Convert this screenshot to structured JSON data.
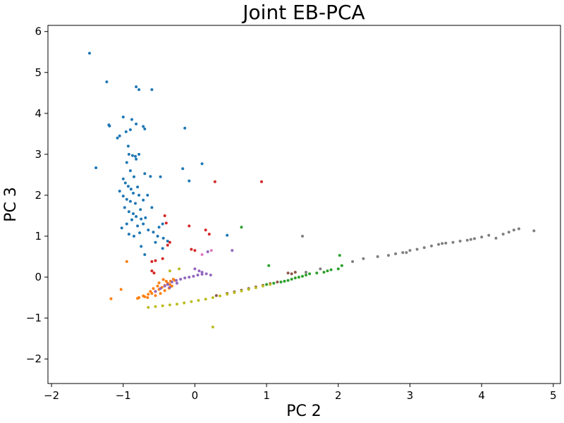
{
  "chart_data": {
    "type": "scatter",
    "title": "Joint EB-PCA",
    "xlabel": "PC 2",
    "ylabel": "PC 3",
    "xlim": [
      -2.05,
      5.1
    ],
    "ylim": [
      -2.6,
      6.15
    ],
    "xticks": [
      -2,
      -1,
      0,
      1,
      2,
      3,
      4,
      5
    ],
    "yticks": [
      -2,
      -1,
      0,
      1,
      2,
      3,
      4,
      5,
      6
    ],
    "xtick_labels": [
      "−2",
      "−1",
      "0",
      "1",
      "2",
      "3",
      "4",
      "5"
    ],
    "ytick_labels": [
      "−2",
      "−1",
      "0",
      "1",
      "2",
      "3",
      "4",
      "5",
      "6"
    ],
    "grid": false,
    "legend": false,
    "series": [
      {
        "color": "#1f77b4",
        "points": [
          [
            -1.47,
            5.47
          ],
          [
            -1.23,
            4.77
          ],
          [
            -0.82,
            4.65
          ],
          [
            -0.78,
            4.58
          ],
          [
            -0.6,
            4.58
          ],
          [
            -1.0,
            3.91
          ],
          [
            -0.88,
            3.85
          ],
          [
            -1.2,
            3.72
          ],
          [
            -1.19,
            3.69
          ],
          [
            -0.82,
            3.74
          ],
          [
            -0.72,
            3.68
          ],
          [
            -0.7,
            3.62
          ],
          [
            -0.14,
            3.64
          ],
          [
            -1.05,
            3.45
          ],
          [
            -0.96,
            3.55
          ],
          [
            -0.9,
            3.6
          ],
          [
            -1.08,
            3.4
          ],
          [
            -0.93,
            3.2
          ],
          [
            -0.92,
            3.0
          ],
          [
            -0.87,
            2.97
          ],
          [
            -0.83,
            2.95
          ],
          [
            -0.78,
            3.0
          ],
          [
            -0.95,
            2.8
          ],
          [
            -0.82,
            2.88
          ],
          [
            -1.38,
            2.67
          ],
          [
            -0.9,
            2.6
          ],
          [
            -0.7,
            2.53
          ],
          [
            -0.62,
            2.46
          ],
          [
            -0.48,
            2.45
          ],
          [
            -0.17,
            2.65
          ],
          [
            0.1,
            2.77
          ],
          [
            -0.08,
            2.35
          ],
          [
            -1.0,
            2.4
          ],
          [
            -0.97,
            2.3
          ],
          [
            -0.93,
            2.22
          ],
          [
            -0.89,
            2.15
          ],
          [
            -0.86,
            2.05
          ],
          [
            -1.05,
            2.1
          ],
          [
            -1.0,
            1.98
          ],
          [
            -0.95,
            1.9
          ],
          [
            -0.9,
            1.85
          ],
          [
            -0.83,
            1.8
          ],
          [
            -0.78,
            2.0
          ],
          [
            -0.72,
            1.88
          ],
          [
            -0.66,
            2.0
          ],
          [
            -0.6,
            1.7
          ],
          [
            -0.98,
            1.7
          ],
          [
            -0.92,
            1.6
          ],
          [
            -0.86,
            1.55
          ],
          [
            -0.82,
            1.48
          ],
          [
            -0.75,
            1.42
          ],
          [
            -0.88,
            1.4
          ],
          [
            -0.95,
            1.3
          ],
          [
            -1.02,
            1.2
          ],
          [
            -0.8,
            1.25
          ],
          [
            -0.72,
            1.3
          ],
          [
            -0.65,
            1.15
          ],
          [
            -0.92,
            1.05
          ],
          [
            -0.85,
            1.0
          ],
          [
            -0.77,
            1.08
          ],
          [
            -0.5,
            1.22
          ],
          [
            -0.45,
            1.3
          ],
          [
            -0.44,
            0.95
          ],
          [
            -0.38,
            0.88
          ],
          [
            -0.55,
            0.85
          ],
          [
            -0.75,
            0.75
          ],
          [
            -0.7,
            0.55
          ],
          [
            -0.45,
            0.7
          ],
          [
            0.45,
            1.02
          ],
          [
            -0.85,
            2.45
          ],
          [
            -0.8,
            2.2
          ],
          [
            -0.76,
            1.65
          ],
          [
            -0.69,
            1.45
          ],
          [
            -0.58,
            1.1
          ],
          [
            -0.52,
            1.0
          ]
        ]
      },
      {
        "color": "#ff7f0e",
        "points": [
          [
            -0.95,
            0.38
          ],
          [
            -1.03,
            -0.3
          ],
          [
            -1.17,
            -0.53
          ],
          [
            -0.78,
            -0.5
          ],
          [
            -0.72,
            -0.46
          ],
          [
            -0.65,
            -0.42
          ],
          [
            -0.6,
            -0.4
          ],
          [
            -0.55,
            -0.35
          ],
          [
            -0.5,
            -0.3
          ],
          [
            -0.46,
            -0.25
          ],
          [
            -0.42,
            -0.2
          ],
          [
            -0.38,
            -0.15
          ],
          [
            -0.34,
            -0.1
          ],
          [
            -0.3,
            -0.05
          ],
          [
            -0.62,
            -0.35
          ],
          [
            -0.58,
            -0.28
          ],
          [
            -0.52,
            -0.22
          ],
          [
            -0.48,
            -0.4
          ],
          [
            -0.42,
            -0.33
          ],
          [
            -0.36,
            -0.27
          ],
          [
            -0.32,
            -0.22
          ],
          [
            -0.55,
            -0.45
          ],
          [
            -0.4,
            -0.1
          ],
          [
            -0.35,
            -0.18
          ],
          [
            -0.7,
            -0.48
          ],
          [
            -0.8,
            -0.52
          ],
          [
            -0.66,
            -0.5
          ],
          [
            -0.28,
            -0.08
          ],
          [
            -0.44,
            -0.06
          ],
          [
            -0.5,
            -0.14
          ]
        ]
      },
      {
        "color": "#2ca02c",
        "points": [
          [
            0.65,
            1.22
          ],
          [
            1.03,
            0.28
          ],
          [
            2.02,
            0.53
          ],
          [
            1.0,
            -0.18
          ],
          [
            1.1,
            -0.15
          ],
          [
            1.2,
            -0.12
          ],
          [
            1.3,
            -0.08
          ],
          [
            1.35,
            -0.05
          ],
          [
            1.4,
            -0.02
          ],
          [
            1.45,
            0.0
          ],
          [
            1.5,
            0.02
          ],
          [
            1.55,
            0.05
          ],
          [
            1.6,
            0.08
          ],
          [
            1.7,
            0.1
          ],
          [
            1.8,
            0.12
          ],
          [
            1.85,
            0.15
          ],
          [
            1.9,
            0.18
          ],
          [
            2.0,
            0.2
          ],
          [
            2.05,
            0.28
          ],
          [
            1.25,
            -0.1
          ]
        ]
      },
      {
        "color": "#d62728",
        "points": [
          [
            0.28,
            2.33
          ],
          [
            0.93,
            2.33
          ],
          [
            -0.42,
            1.5
          ],
          [
            -0.4,
            1.32
          ],
          [
            -0.08,
            1.25
          ],
          [
            0.15,
            1.15
          ],
          [
            0.2,
            1.05
          ],
          [
            -0.35,
            0.85
          ],
          [
            -0.38,
            0.78
          ],
          [
            -0.05,
            0.68
          ],
          [
            0.0,
            0.65
          ],
          [
            -0.45,
            0.45
          ],
          [
            -0.55,
            0.4
          ],
          [
            -0.6,
            0.38
          ],
          [
            -0.57,
            0.1
          ],
          [
            -0.6,
            0.15
          ]
        ]
      },
      {
        "color": "#9467bd",
        "points": [
          [
            0.52,
            0.65
          ],
          [
            0.18,
            0.62
          ],
          [
            -0.55,
            -0.35
          ],
          [
            -0.48,
            -0.28
          ],
          [
            -0.42,
            -0.22
          ],
          [
            -0.38,
            -0.18
          ],
          [
            -0.32,
            -0.12
          ],
          [
            -0.26,
            -0.08
          ],
          [
            -0.2,
            -0.05
          ],
          [
            -0.14,
            -0.02
          ],
          [
            -0.08,
            0.0
          ],
          [
            -0.02,
            0.02
          ],
          [
            0.04,
            0.05
          ],
          [
            0.1,
            0.07
          ],
          [
            0.16,
            0.08
          ],
          [
            0.22,
            0.05
          ],
          [
            0.06,
            0.15
          ],
          [
            0.1,
            0.12
          ],
          [
            0.0,
            0.2
          ],
          [
            -0.25,
            -0.15
          ],
          [
            -0.35,
            -0.25
          ]
        ]
      },
      {
        "color": "#8c564b",
        "points": [
          [
            0.3,
            -0.45
          ],
          [
            0.45,
            -0.4
          ],
          [
            0.55,
            -0.36
          ],
          [
            0.65,
            -0.32
          ],
          [
            0.75,
            -0.28
          ],
          [
            0.85,
            -0.24
          ],
          [
            0.95,
            -0.2
          ],
          [
            1.05,
            -0.16
          ],
          [
            1.15,
            -0.12
          ],
          [
            1.3,
            0.1
          ],
          [
            1.35,
            0.08
          ],
          [
            1.4,
            0.12
          ]
        ]
      },
      {
        "color": "#e377c2",
        "points": [
          [
            0.23,
            0.65
          ],
          [
            0.1,
            0.55
          ]
        ]
      },
      {
        "color": "#7f7f7f",
        "points": [
          [
            1.5,
            1.0
          ],
          [
            1.55,
            0.12
          ],
          [
            1.75,
            0.2
          ],
          [
            2.2,
            0.38
          ],
          [
            2.35,
            0.45
          ],
          [
            2.55,
            0.5
          ],
          [
            2.7,
            0.53
          ],
          [
            2.8,
            0.57
          ],
          [
            2.9,
            0.6
          ],
          [
            3.0,
            0.65
          ],
          [
            3.1,
            0.68
          ],
          [
            3.2,
            0.72
          ],
          [
            3.3,
            0.76
          ],
          [
            3.4,
            0.8
          ],
          [
            3.5,
            0.83
          ],
          [
            3.6,
            0.85
          ],
          [
            3.7,
            0.88
          ],
          [
            3.8,
            0.9
          ],
          [
            3.9,
            0.94
          ],
          [
            4.0,
            0.98
          ],
          [
            4.1,
            1.02
          ],
          [
            4.2,
            0.95
          ],
          [
            4.3,
            1.05
          ],
          [
            4.38,
            1.1
          ],
          [
            4.45,
            1.15
          ],
          [
            4.52,
            1.18
          ],
          [
            4.73,
            1.13
          ],
          [
            2.95,
            0.6
          ],
          [
            3.45,
            0.82
          ],
          [
            3.85,
            0.92
          ]
        ]
      },
      {
        "color": "#bcbd22",
        "points": [
          [
            -0.65,
            -0.74
          ],
          [
            -0.55,
            -0.72
          ],
          [
            -0.45,
            -0.7
          ],
          [
            -0.35,
            -0.68
          ],
          [
            -0.25,
            -0.66
          ],
          [
            -0.15,
            -0.63
          ],
          [
            -0.05,
            -0.6
          ],
          [
            0.05,
            -0.57
          ],
          [
            0.15,
            -0.54
          ],
          [
            0.25,
            -0.5
          ],
          [
            0.35,
            -0.46
          ],
          [
            0.45,
            -0.42
          ],
          [
            0.55,
            -0.38
          ],
          [
            0.65,
            -0.34
          ],
          [
            0.75,
            -0.3
          ],
          [
            0.85,
            -0.26
          ],
          [
            0.95,
            -0.22
          ],
          [
            1.05,
            -0.18
          ],
          [
            -0.35,
            0.15
          ],
          [
            -0.22,
            0.2
          ],
          [
            0.25,
            -1.22
          ]
        ]
      }
    ]
  }
}
